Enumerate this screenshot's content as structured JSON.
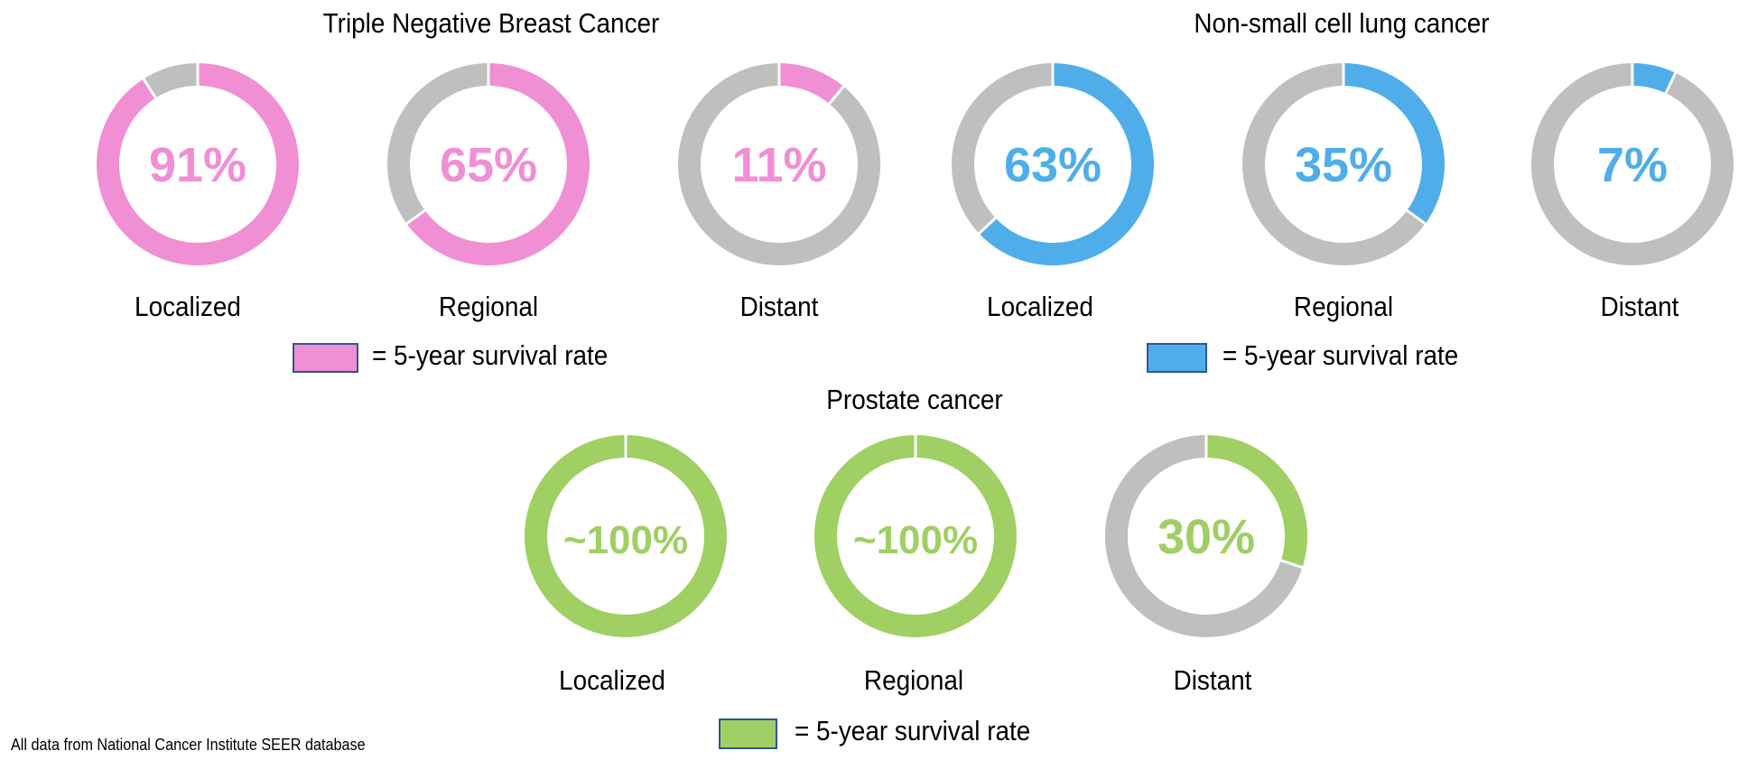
{
  "colors": {
    "breast": "#F08FD4",
    "lung": "#4FAEEA",
    "prostate": "#A0CF63",
    "remainder": "#BFBFBF",
    "legend_border": "#2F5597"
  },
  "chart_data": [
    {
      "type": "pie",
      "subtype": "donut",
      "title": "Triple Negative Breast Cancer",
      "categories": [
        "Localized",
        "Regional",
        "Distant"
      ],
      "values": [
        91,
        65,
        11
      ],
      "value_labels": [
        "91%",
        "65%",
        "11%"
      ],
      "legend": "= 5-year survival rate",
      "color": "#F08FD4"
    },
    {
      "type": "pie",
      "subtype": "donut",
      "title": "Non-small cell lung cancer",
      "categories": [
        "Localized",
        "Regional",
        "Distant"
      ],
      "values": [
        63,
        35,
        7
      ],
      "value_labels": [
        "63%",
        "35%",
        "7%"
      ],
      "legend": "= 5-year survival rate",
      "color": "#4FAEEA"
    },
    {
      "type": "pie",
      "subtype": "donut",
      "title": "Prostate cancer",
      "categories": [
        "Localized",
        "Regional",
        "Distant"
      ],
      "values": [
        100,
        100,
        30
      ],
      "value_labels": [
        "~100%",
        "~100%",
        "30%"
      ],
      "legend": "= 5-year survival rate",
      "color": "#A0CF63"
    }
  ],
  "footer": "All data from National Cancer Institute SEER database"
}
